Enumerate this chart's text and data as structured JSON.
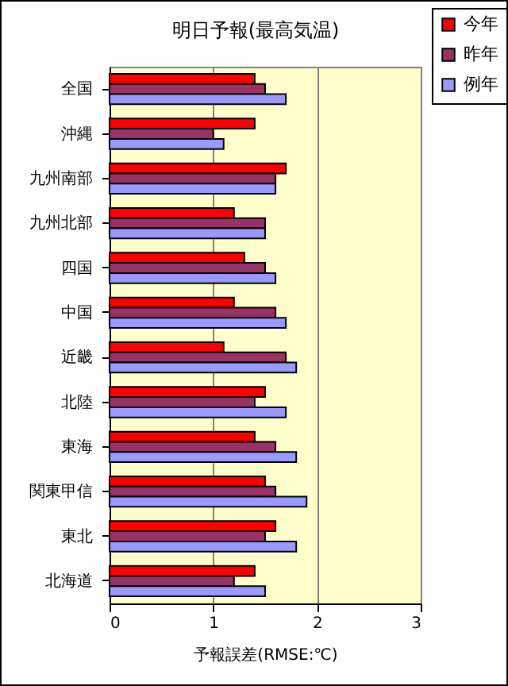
{
  "chart_data": {
    "type": "bar",
    "orientation": "horizontal",
    "title": "明日予報(最高気温)",
    "xlabel": "予報誤差(RMSE:℃)",
    "categories": [
      "全国",
      "沖縄",
      "九州南部",
      "九州北部",
      "四国",
      "中国",
      "近畿",
      "北陸",
      "東海",
      "関東甲信",
      "東北",
      "北海道"
    ],
    "series": [
      {
        "name": "今年",
        "color": "#ff0000",
        "values": [
          1.4,
          1.4,
          1.7,
          1.2,
          1.3,
          1.2,
          1.1,
          1.5,
          1.4,
          1.5,
          1.6,
          1.4
        ]
      },
      {
        "name": "昨年",
        "color": "#993366",
        "values": [
          1.5,
          1.0,
          1.6,
          1.5,
          1.5,
          1.6,
          1.7,
          1.4,
          1.6,
          1.6,
          1.5,
          1.2
        ]
      },
      {
        "name": "例年",
        "color": "#9999ff",
        "values": [
          1.7,
          1.1,
          1.6,
          1.5,
          1.6,
          1.7,
          1.8,
          1.7,
          1.8,
          1.9,
          1.8,
          1.5
        ]
      }
    ],
    "xlim": [
      0,
      3
    ],
    "xticks": [
      0,
      1,
      2,
      3
    ],
    "grid": "x",
    "legend": "top right"
  }
}
